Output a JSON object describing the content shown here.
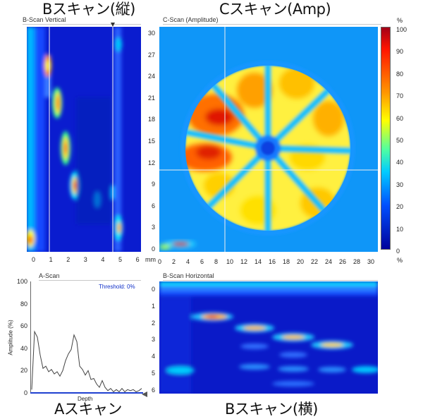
{
  "captions": {
    "bscan_vertical": "Bスキャン(縦)",
    "cscan": "Cスキャン(Amp)",
    "ascan": "Aスキャン",
    "bscan_horizontal": "Bスキャン(横)"
  },
  "panels": {
    "bscan_vertical_title": "B-Scan Vertical",
    "cscan_title": "C-Scan (Amplitude)",
    "ascan_title": "A-Scan",
    "bscan_horizontal_title": "B-Scan Horizontal"
  },
  "cscan": {
    "unit": "mm",
    "y_ticks": [
      "30",
      "27",
      "24",
      "21",
      "18",
      "15",
      "12",
      "9",
      "6",
      "3",
      "0"
    ],
    "x_ticks": [
      "0",
      "2",
      "4",
      "6",
      "8",
      "10",
      "12",
      "14",
      "16",
      "18",
      "20",
      "22",
      "24",
      "26",
      "28",
      "30"
    ],
    "cursor_x_mm": 9.3,
    "cursor_y_mm": 11.3
  },
  "colorbar": {
    "unit_top": "%",
    "unit_bottom": "%",
    "ticks": [
      "100",
      "90",
      "80",
      "70",
      "60",
      "50",
      "40",
      "30",
      "20",
      "10",
      "0"
    ],
    "colors": [
      "#b0001a",
      "#ff2000",
      "#ff9000",
      "#ffff00",
      "#60ff90",
      "#00c8ff",
      "#0050ff",
      "#0000a8"
    ]
  },
  "bscan_vertical": {
    "x_ticks": [
      "0",
      "1",
      "2",
      "3",
      "4",
      "5",
      "6"
    ],
    "cursor_1": 0.8,
    "cursor_2": 4.7
  },
  "ascan": {
    "threshold_label": "Threshold: 0%",
    "ylabel": "Amplitude (%)",
    "xlabel": "Depth",
    "y_ticks": [
      "100",
      "80",
      "60",
      "40",
      "20",
      "0"
    ],
    "ylim": [
      0,
      100
    ],
    "trace": [
      3,
      55,
      50,
      34,
      22,
      24,
      19,
      21,
      17,
      19,
      15,
      20,
      29,
      35,
      39,
      52,
      46,
      24,
      21,
      16,
      20,
      12,
      13,
      8,
      5,
      11,
      5,
      2,
      4,
      1,
      3,
      1,
      4,
      1,
      3,
      2,
      3,
      1,
      2,
      4
    ]
  },
  "bscan_horizontal": {
    "y_ticks": [
      "0",
      "1",
      "2",
      "3",
      "4",
      "5",
      "6"
    ]
  }
}
